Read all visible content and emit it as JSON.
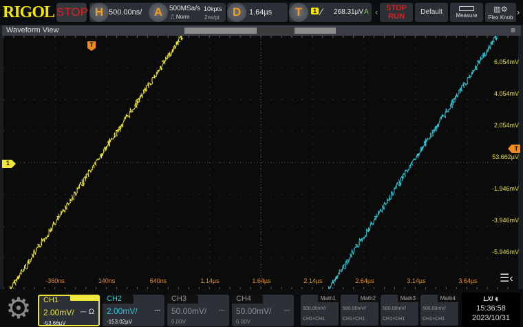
{
  "brand": "RIGOL",
  "run_state": "STOP",
  "horizontal": {
    "icon": "H",
    "scale": "500.00ns/"
  },
  "acquire": {
    "icon": "A",
    "rate": "500MSa/s",
    "mode": "Norm",
    "points": "10kpts",
    "resolution": "2ns/pt"
  },
  "delay": {
    "icon": "D",
    "value": "1.64µs"
  },
  "trigger": {
    "icon": "T",
    "source": "1",
    "level": "268.31µV",
    "status": "A"
  },
  "toolbar": {
    "stop_label": "STOP",
    "run_label": "RUN",
    "default_label": "Default",
    "measure_label": "Measure",
    "flex_label": "Flex Knob"
  },
  "waveform_view": {
    "title": "Waveform View"
  },
  "time_labels": [
    "-360ns",
    "140ns",
    "640ns",
    "1.14µs",
    "1.64µs",
    "2.14µs",
    "2.64µs",
    "3.14µs",
    "3.64µs"
  ],
  "volt_labels": [
    "6.054mV",
    "4.054mV",
    "2.054mV",
    "53.662µV",
    "-1.946mV",
    "-3.946mV",
    "-5.946mV"
  ],
  "markers": {
    "trigger": "T",
    "ch1": "1"
  },
  "channels": [
    {
      "name": "CH1",
      "scale": "2.00mV/",
      "offset": "-53.66µV",
      "color": "#f0e63a",
      "active": true
    },
    {
      "name": "CH2",
      "scale": "2.00mV/",
      "offset": "-153.02µV",
      "color": "#2ec8d8",
      "active": true
    },
    {
      "name": "CH3",
      "scale": "50.00mV/",
      "offset": "0.00V",
      "color": "#8a8f96",
      "active": false
    },
    {
      "name": "CH4",
      "scale": "50.00mV/",
      "offset": "0.00V",
      "color": "#8a8f96",
      "active": false
    }
  ],
  "coupling_symbol": "⎓",
  "impedance_symbol": "Ω",
  "math": [
    {
      "name": "Math1",
      "scale": "500.00mV/",
      "expr": "CH1+CH1"
    },
    {
      "name": "Math2",
      "scale": "500.00mV/",
      "expr": "CH1+CH1"
    },
    {
      "name": "Math3",
      "scale": "500.00mV/",
      "expr": "CH1+CH1"
    },
    {
      "name": "Math4",
      "scale": "500.00mV/",
      "expr": "CH1+CH1"
    }
  ],
  "status": {
    "lxi": "LXI",
    "time": "15:36:58",
    "date": "2023/10/31"
  }
}
